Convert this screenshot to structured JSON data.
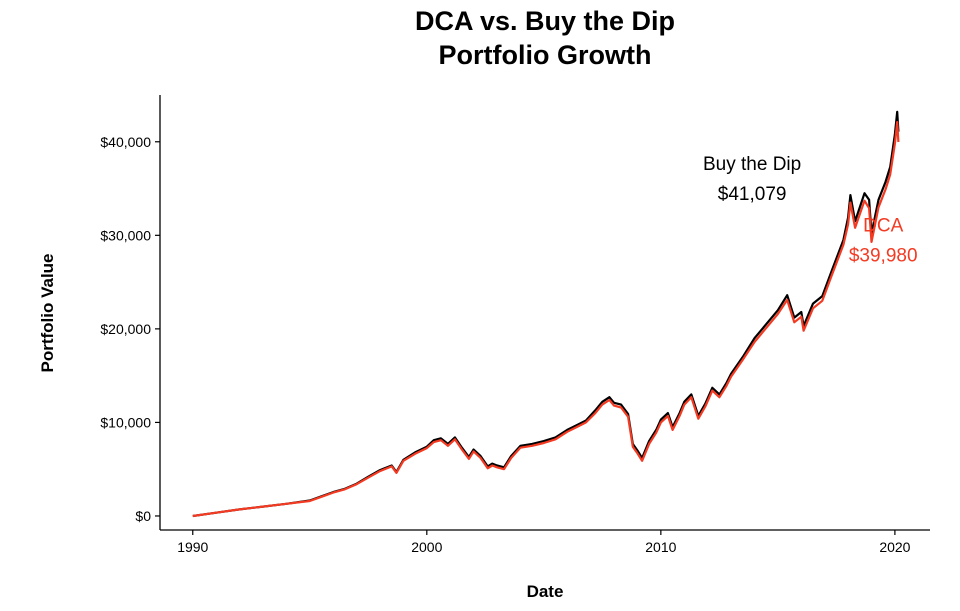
{
  "chart_data": {
    "type": "line",
    "title": [
      "DCA vs. Buy the Dip",
      "Portfolio Growth"
    ],
    "xlabel": "Date",
    "ylabel": "Portfolio Value",
    "xlim": [
      1988.6,
      2021.5
    ],
    "ylim": [
      -1500,
      45000
    ],
    "x_ticks": [
      1990,
      2000,
      2010,
      2020
    ],
    "x_tick_labels": [
      "1990",
      "2000",
      "2010",
      "2020"
    ],
    "y_ticks": [
      0,
      10000,
      20000,
      30000,
      40000
    ],
    "y_tick_labels": [
      "$0",
      "$10,000",
      "$20,000",
      "$30,000",
      "$40,000"
    ],
    "grid": false,
    "legend": "none",
    "colors": {
      "buy_the_dip": "#000000",
      "dca": "#f33a22",
      "axis": "#000000"
    },
    "series": [
      {
        "name": "Buy the Dip",
        "color": "#000000",
        "points": [
          [
            1990.0,
            0
          ],
          [
            1991.0,
            350
          ],
          [
            1992.0,
            700
          ],
          [
            1993.0,
            1000
          ],
          [
            1994.0,
            1300
          ],
          [
            1995.0,
            1650
          ],
          [
            1995.5,
            2100
          ],
          [
            1996.0,
            2550
          ],
          [
            1996.5,
            2900
          ],
          [
            1997.0,
            3450
          ],
          [
            1997.5,
            4200
          ],
          [
            1998.0,
            4900
          ],
          [
            1998.5,
            5400
          ],
          [
            1998.7,
            4700
          ],
          [
            1999.0,
            6000
          ],
          [
            1999.5,
            6800
          ],
          [
            2000.0,
            7400
          ],
          [
            2000.3,
            8100
          ],
          [
            2000.6,
            8300
          ],
          [
            2000.9,
            7700
          ],
          [
            2001.2,
            8400
          ],
          [
            2001.5,
            7300
          ],
          [
            2001.8,
            6300
          ],
          [
            2002.0,
            7100
          ],
          [
            2002.3,
            6400
          ],
          [
            2002.6,
            5300
          ],
          [
            2002.8,
            5600
          ],
          [
            2003.0,
            5400
          ],
          [
            2003.3,
            5200
          ],
          [
            2003.6,
            6400
          ],
          [
            2004.0,
            7500
          ],
          [
            2004.5,
            7700
          ],
          [
            2005.0,
            8000
          ],
          [
            2005.5,
            8400
          ],
          [
            2006.0,
            9200
          ],
          [
            2006.4,
            9700
          ],
          [
            2006.8,
            10200
          ],
          [
            2007.2,
            11300
          ],
          [
            2007.5,
            12200
          ],
          [
            2007.8,
            12700
          ],
          [
            2008.0,
            12100
          ],
          [
            2008.3,
            11900
          ],
          [
            2008.6,
            10900
          ],
          [
            2008.8,
            7700
          ],
          [
            2009.0,
            7000
          ],
          [
            2009.2,
            6200
          ],
          [
            2009.5,
            8000
          ],
          [
            2009.8,
            9200
          ],
          [
            2010.0,
            10300
          ],
          [
            2010.3,
            11000
          ],
          [
            2010.5,
            9500
          ],
          [
            2010.8,
            11000
          ],
          [
            2011.0,
            12200
          ],
          [
            2011.3,
            13000
          ],
          [
            2011.6,
            10700
          ],
          [
            2011.9,
            12000
          ],
          [
            2012.2,
            13700
          ],
          [
            2012.5,
            13000
          ],
          [
            2012.8,
            14200
          ],
          [
            2013.0,
            15200
          ],
          [
            2013.5,
            17000
          ],
          [
            2014.0,
            19000
          ],
          [
            2014.5,
            20500
          ],
          [
            2015.0,
            22000
          ],
          [
            2015.4,
            23600
          ],
          [
            2015.7,
            21200
          ],
          [
            2016.0,
            21800
          ],
          [
            2016.1,
            20300
          ],
          [
            2016.5,
            22700
          ],
          [
            2016.9,
            23500
          ],
          [
            2017.3,
            26200
          ],
          [
            2017.8,
            29500
          ],
          [
            2018.0,
            31900
          ],
          [
            2018.1,
            34300
          ],
          [
            2018.3,
            31500
          ],
          [
            2018.7,
            34500
          ],
          [
            2018.9,
            33800
          ],
          [
            2019.0,
            30200
          ],
          [
            2019.3,
            33800
          ],
          [
            2019.6,
            35700
          ],
          [
            2019.8,
            37300
          ],
          [
            2020.0,
            40800
          ],
          [
            2020.1,
            43200
          ],
          [
            2020.15,
            41079
          ]
        ]
      },
      {
        "name": "DCA",
        "color": "#f33a22",
        "points": [
          [
            1990.0,
            0
          ],
          [
            1991.0,
            350
          ],
          [
            1992.0,
            700
          ],
          [
            1993.0,
            1000
          ],
          [
            1994.0,
            1300
          ],
          [
            1995.0,
            1600
          ],
          [
            1995.5,
            2050
          ],
          [
            1996.0,
            2500
          ],
          [
            1996.5,
            2850
          ],
          [
            1997.0,
            3400
          ],
          [
            1997.5,
            4100
          ],
          [
            1998.0,
            4800
          ],
          [
            1998.5,
            5300
          ],
          [
            1998.7,
            4600
          ],
          [
            1999.0,
            5900
          ],
          [
            1999.5,
            6650
          ],
          [
            2000.0,
            7250
          ],
          [
            2000.3,
            7900
          ],
          [
            2000.6,
            8100
          ],
          [
            2000.9,
            7500
          ],
          [
            2001.2,
            8200
          ],
          [
            2001.5,
            7100
          ],
          [
            2001.8,
            6100
          ],
          [
            2002.0,
            6900
          ],
          [
            2002.3,
            6200
          ],
          [
            2002.6,
            5100
          ],
          [
            2002.8,
            5400
          ],
          [
            2003.0,
            5200
          ],
          [
            2003.3,
            5000
          ],
          [
            2003.6,
            6200
          ],
          [
            2004.0,
            7300
          ],
          [
            2004.5,
            7500
          ],
          [
            2005.0,
            7800
          ],
          [
            2005.5,
            8200
          ],
          [
            2006.0,
            9000
          ],
          [
            2006.4,
            9500
          ],
          [
            2006.8,
            10000
          ],
          [
            2007.2,
            11000
          ],
          [
            2007.5,
            11900
          ],
          [
            2007.8,
            12400
          ],
          [
            2008.0,
            11800
          ],
          [
            2008.3,
            11600
          ],
          [
            2008.6,
            10600
          ],
          [
            2008.8,
            7400
          ],
          [
            2009.0,
            6700
          ],
          [
            2009.2,
            5900
          ],
          [
            2009.5,
            7700
          ],
          [
            2009.8,
            8900
          ],
          [
            2010.0,
            10000
          ],
          [
            2010.3,
            10700
          ],
          [
            2010.5,
            9200
          ],
          [
            2010.8,
            10700
          ],
          [
            2011.0,
            11900
          ],
          [
            2011.3,
            12700
          ],
          [
            2011.6,
            10400
          ],
          [
            2011.9,
            11700
          ],
          [
            2012.2,
            13400
          ],
          [
            2012.5,
            12700
          ],
          [
            2012.8,
            13900
          ],
          [
            2013.0,
            14900
          ],
          [
            2013.5,
            16700
          ],
          [
            2014.0,
            18600
          ],
          [
            2014.5,
            20100
          ],
          [
            2015.0,
            21600
          ],
          [
            2015.4,
            23100
          ],
          [
            2015.7,
            20700
          ],
          [
            2016.0,
            21300
          ],
          [
            2016.1,
            19800
          ],
          [
            2016.5,
            22200
          ],
          [
            2016.9,
            23000
          ],
          [
            2017.3,
            25700
          ],
          [
            2017.8,
            29000
          ],
          [
            2018.0,
            31200
          ],
          [
            2018.1,
            33500
          ],
          [
            2018.3,
            30800
          ],
          [
            2018.7,
            33700
          ],
          [
            2018.9,
            32900
          ],
          [
            2019.0,
            29300
          ],
          [
            2019.3,
            33000
          ],
          [
            2019.6,
            34900
          ],
          [
            2019.8,
            36500
          ],
          [
            2020.0,
            39800
          ],
          [
            2020.1,
            42100
          ],
          [
            2020.15,
            39980
          ]
        ]
      }
    ],
    "annotations": [
      {
        "lines": [
          "Buy the Dip",
          "$41,079"
        ],
        "x": 2013.9,
        "y": 33800,
        "color": "#000000"
      },
      {
        "lines": [
          "DCA",
          "$39,980"
        ],
        "x": 2019.5,
        "y": 27200,
        "color": "#f33a22"
      }
    ]
  }
}
